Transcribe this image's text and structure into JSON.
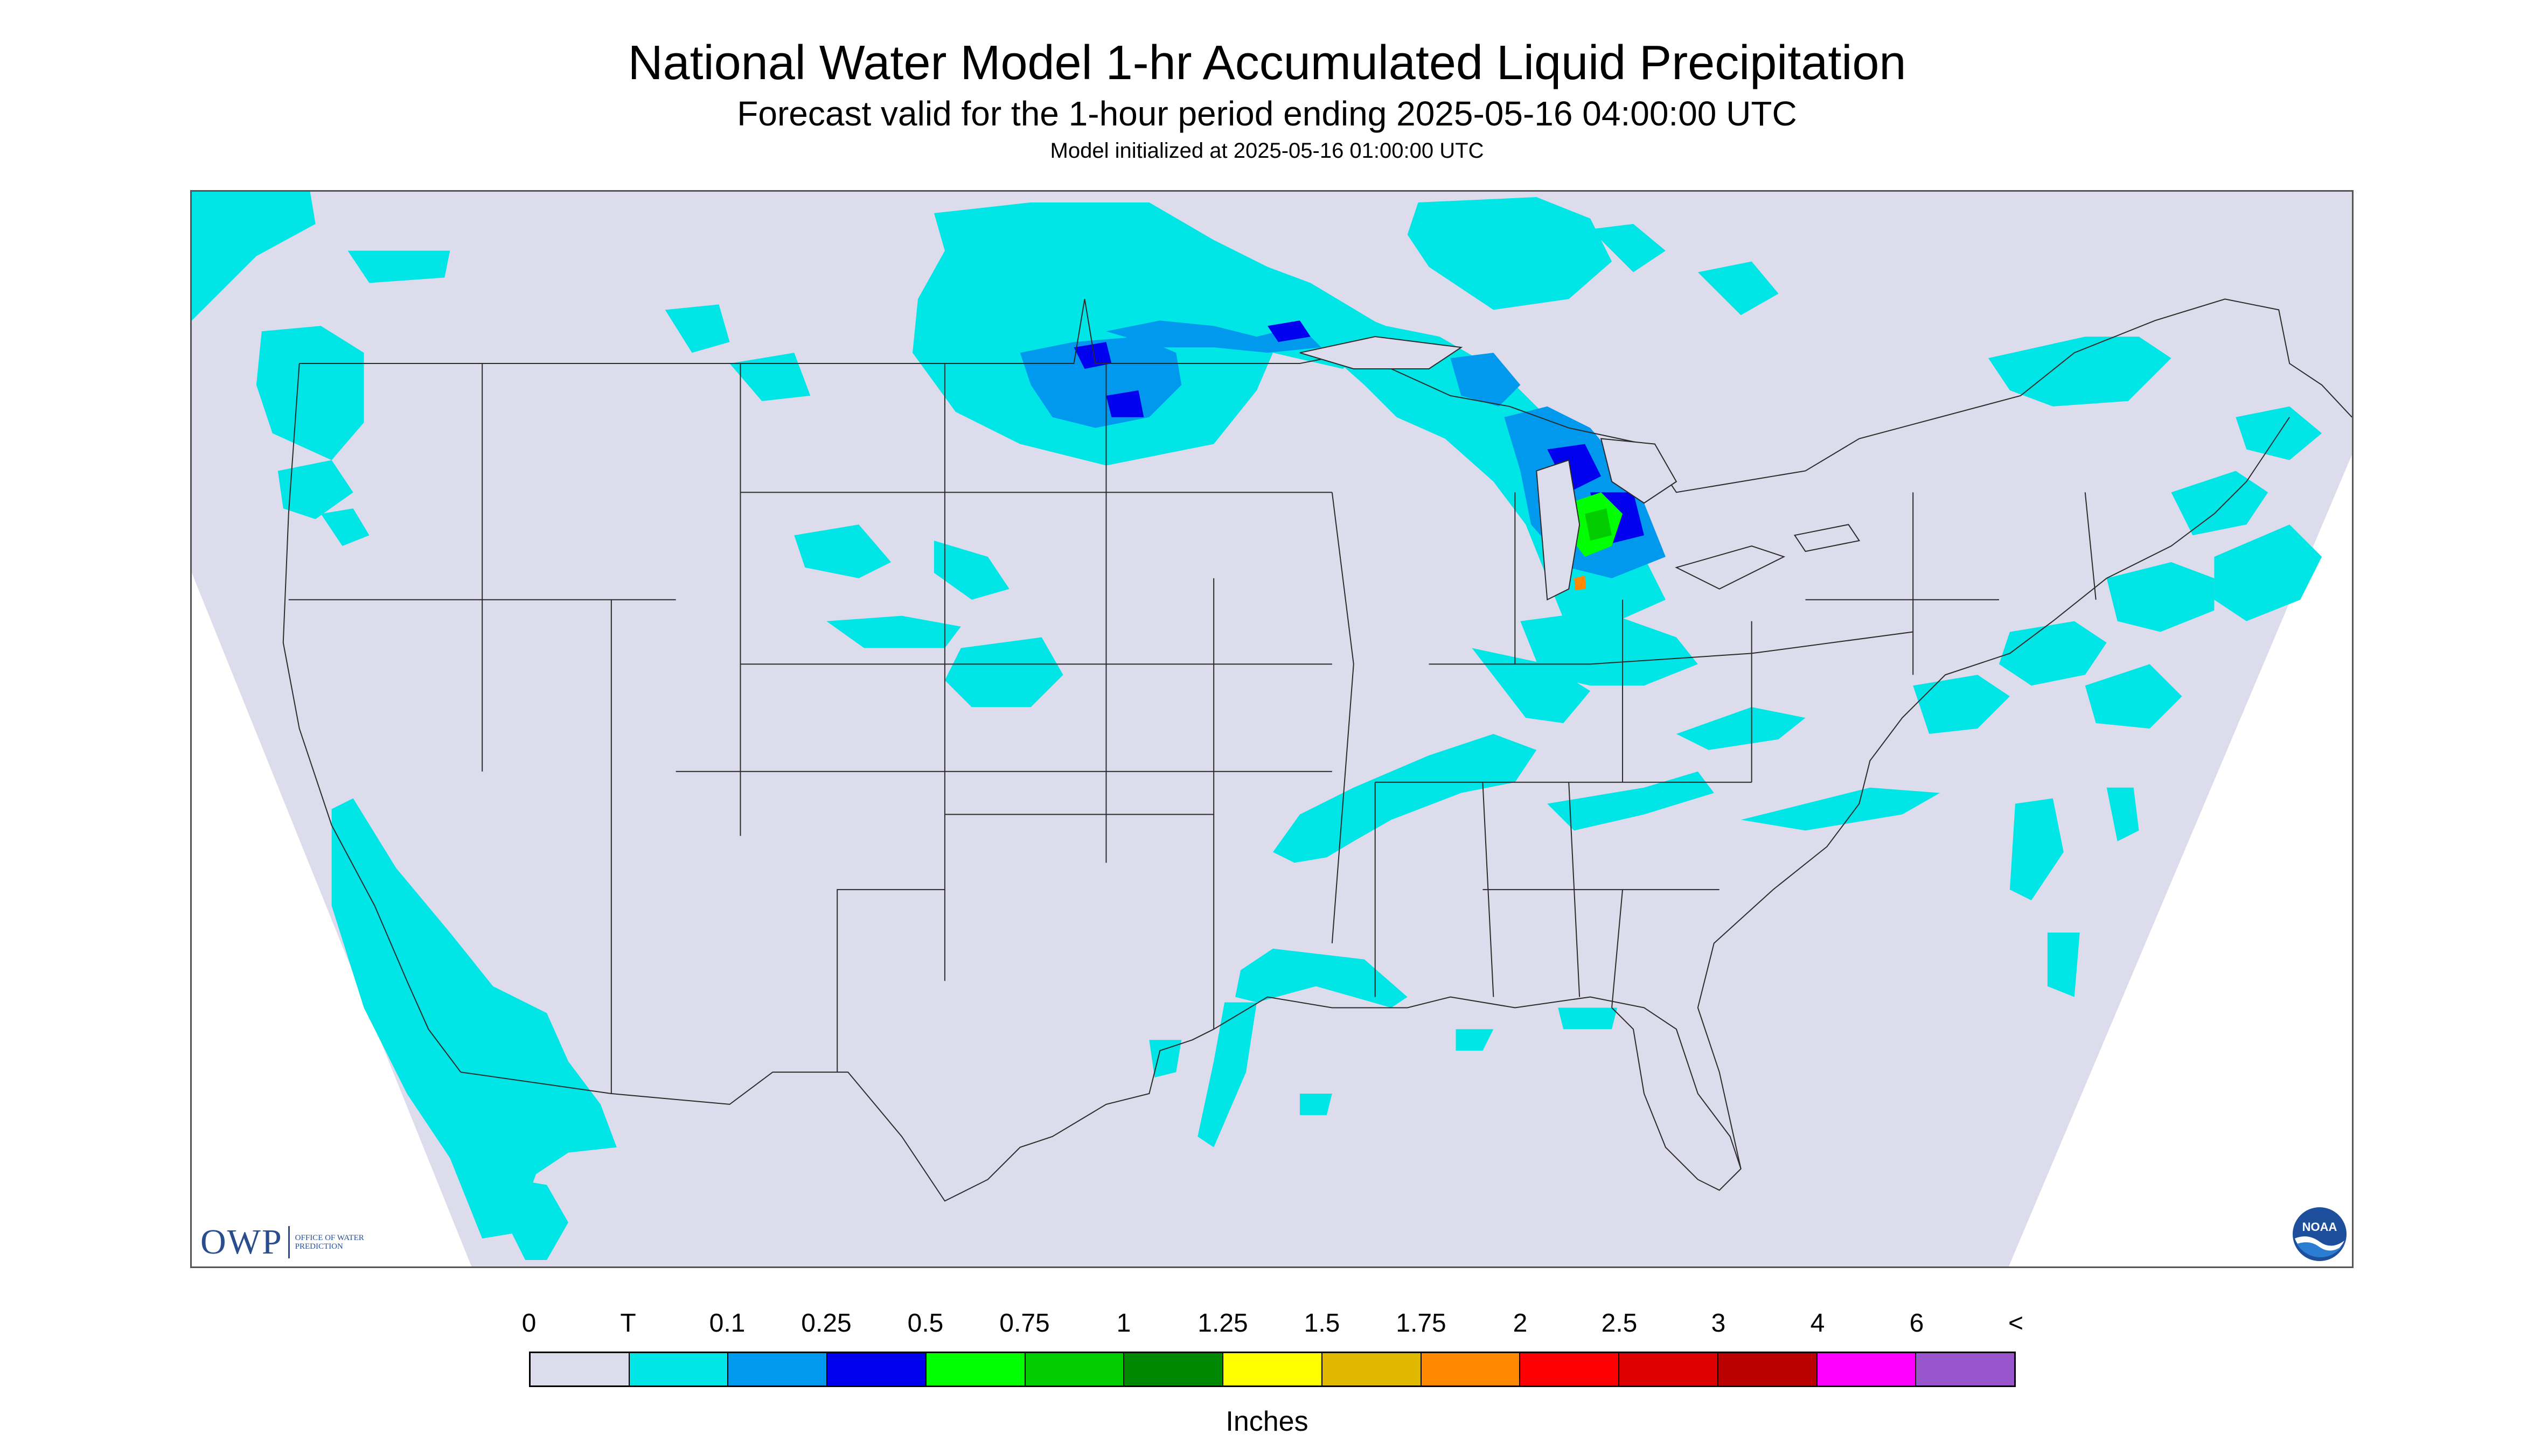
{
  "header": {
    "title": "National Water Model 1-hr Accumulated Liquid Precipitation",
    "subtitle": "Forecast valid for the 1-hour period ending 2025-05-16 04:00:00 UTC",
    "init_line": "Model initialized at 2025-05-16 01:00:00 UTC"
  },
  "map": {
    "background_color": "#dcdcec",
    "outside_domain_color": "#ffffff",
    "boundary_color": "#2b2b2b",
    "region": "Contiguous United States"
  },
  "logos": {
    "owp_mark": "OWP",
    "owp_text": "Office of Water Prediction",
    "noaa_text": "NOAA"
  },
  "legend": {
    "units": "Inches",
    "tick_labels": [
      "0",
      "T",
      "0.1",
      "0.25",
      "0.5",
      "0.75",
      "1",
      "1.25",
      "1.5",
      "1.75",
      "2",
      "2.5",
      "3",
      "4",
      "6",
      "<"
    ],
    "colors": [
      "#dcdcec",
      "#00e5e5",
      "#0099ee",
      "#0000ee",
      "#00ff00",
      "#00cc00",
      "#008800",
      "#ffff00",
      "#e0b800",
      "#ff8800",
      "#ff0000",
      "#dd0000",
      "#bb0000",
      "#ff00ff",
      "#9955cc"
    ]
  }
}
